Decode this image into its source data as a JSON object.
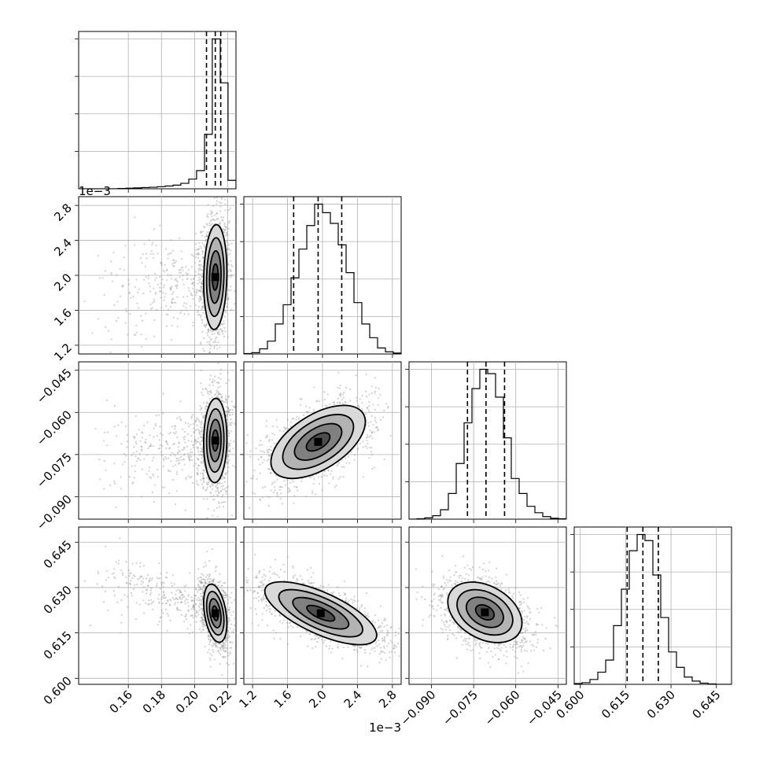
{
  "chart_data": {
    "type": "corner",
    "parameters": [
      {
        "key": "p0",
        "range": [
          0.13,
          0.225
        ],
        "ticks": [
          0.16,
          0.18,
          0.2,
          0.22
        ],
        "tick_labels": [
          "0.16",
          "0.18",
          "0.20",
          "0.22"
        ],
        "offset_label": "",
        "median": 0.2125,
        "quantiles": [
          0.2072,
          0.2125,
          0.2158
        ],
        "spread": 0.004
      },
      {
        "key": "p1",
        "range": [
          1.1,
          2.9
        ],
        "ticks": [
          1.2,
          1.6,
          2.0,
          2.4,
          2.8
        ],
        "tick_labels": [
          "1.2",
          "1.6",
          "2.0",
          "2.4",
          "2.8"
        ],
        "offset_label": "1e−3",
        "median": 1.95,
        "quantiles": [
          1.67,
          1.95,
          2.22
        ],
        "spread": 0.27
      },
      {
        "key": "p2",
        "range": [
          -0.098,
          -0.042
        ],
        "ticks": [
          -0.09,
          -0.075,
          -0.06,
          -0.045
        ],
        "tick_labels": [
          "−0.090",
          "−0.075",
          "−0.060",
          "−0.045"
        ],
        "offset_label": "",
        "median": -0.0706,
        "quantiles": [
          -0.0772,
          -0.0706,
          -0.064
        ],
        "spread": 0.0066
      },
      {
        "key": "p3",
        "range": [
          0.598,
          0.65
        ],
        "ticks": [
          0.6,
          0.615,
          0.63,
          0.645
        ],
        "tick_labels": [
          "0.600",
          "0.615",
          "0.630",
          "0.645"
        ],
        "offset_label": "",
        "median": 0.6207,
        "quantiles": [
          0.6155,
          0.6207,
          0.6258
        ],
        "spread": 0.0052
      }
    ],
    "histograms": [
      {
        "param": 0,
        "bins": [
          0.13,
          0.1347,
          0.1395,
          0.1442,
          0.149,
          0.1537,
          0.1585,
          0.1632,
          0.168,
          0.1727,
          0.1775,
          0.1822,
          0.187,
          0.1917,
          0.1965,
          0.2012,
          0.206,
          0.2107,
          0.2155,
          0.2202,
          0.225
        ],
        "counts": [
          0,
          0,
          0,
          0,
          0,
          1,
          2,
          3,
          4,
          5,
          7,
          9,
          12,
          18,
          32,
          60,
          180,
          495,
          350,
          28
        ]
      },
      {
        "param": 1,
        "bins": [
          1.1,
          1.19,
          1.28,
          1.37,
          1.46,
          1.55,
          1.64,
          1.73,
          1.82,
          1.91,
          2.0,
          2.09,
          2.18,
          2.27,
          2.36,
          2.45,
          2.54,
          2.63,
          2.72,
          2.81,
          2.9
        ],
        "counts": [
          1,
          3,
          12,
          30,
          70,
          115,
          178,
          245,
          300,
          350,
          330,
          305,
          255,
          190,
          120,
          70,
          38,
          14,
          5,
          2
        ]
      },
      {
        "param": 2,
        "bins": [
          -0.098,
          -0.0952,
          -0.0924,
          -0.0896,
          -0.0868,
          -0.084,
          -0.0812,
          -0.0784,
          -0.0756,
          -0.0728,
          -0.07,
          -0.0672,
          -0.0644,
          -0.0616,
          -0.0588,
          -0.056,
          -0.0532,
          -0.0504,
          -0.0476,
          -0.0448,
          -0.042
        ],
        "counts": [
          0,
          1,
          3,
          8,
          22,
          60,
          130,
          225,
          305,
          350,
          340,
          285,
          190,
          95,
          60,
          30,
          15,
          6,
          2,
          1
        ]
      },
      {
        "param": 3,
        "bins": [
          0.598,
          0.6006,
          0.6032,
          0.6058,
          0.6084,
          0.611,
          0.6136,
          0.6162,
          0.6188,
          0.6214,
          0.624,
          0.6266,
          0.6292,
          0.6318,
          0.6344,
          0.637,
          0.6396,
          0.6422,
          0.6448,
          0.6474,
          0.65
        ],
        "counts": [
          2,
          4,
          12,
          30,
          60,
          145,
          235,
          330,
          370,
          355,
          270,
          165,
          80,
          42,
          18,
          8,
          3,
          1,
          0,
          0
        ]
      }
    ],
    "pairs": [
      {
        "x_param": 0,
        "y_param": 1,
        "center": [
          0.2125,
          1.98
        ],
        "sigma": [
          0.0035,
          0.3
        ],
        "correlation": 0.1,
        "tail": {
          "direction": [
            -1,
            -0.3
          ],
          "extent": [
            0.06,
            0.6
          ]
        }
      },
      {
        "x_param": 0,
        "y_param": 2,
        "center": [
          0.2125,
          -0.07
        ],
        "sigma": [
          0.0035,
          0.0075
        ],
        "correlation": 0.05,
        "tail": {
          "direction": [
            -1,
            -0.4
          ],
          "extent": [
            0.06,
            0.015
          ]
        }
      },
      {
        "x_param": 1,
        "y_param": 2,
        "center": [
          1.95,
          -0.0705
        ],
        "sigma": [
          0.27,
          0.0065
        ],
        "correlation": 0.55,
        "tail": null
      },
      {
        "x_param": 0,
        "y_param": 3,
        "center": [
          0.2125,
          0.6215
        ],
        "sigma": [
          0.0035,
          0.0048
        ],
        "correlation": -0.35,
        "tail": {
          "direction": [
            -1,
            0.55
          ],
          "extent": [
            0.06,
            0.02
          ]
        }
      },
      {
        "x_param": 1,
        "y_param": 3,
        "center": [
          1.98,
          0.6215
        ],
        "sigma": [
          0.32,
          0.0052
        ],
        "correlation": -0.7,
        "tail": null
      },
      {
        "x_param": 2,
        "y_param": 3,
        "center": [
          -0.071,
          0.6218
        ],
        "sigma": [
          0.0066,
          0.005
        ],
        "correlation": -0.35,
        "tail": null
      }
    ],
    "contour_levels_sigma": [
      0.5,
      1.0,
      1.5,
      2.0
    ],
    "grid": true,
    "colors": {
      "contour": "#000000",
      "scatter": "#9a9a9a",
      "density_max": "#000000",
      "density_min": "#ffffff",
      "grid": "#b0b0b0"
    }
  }
}
